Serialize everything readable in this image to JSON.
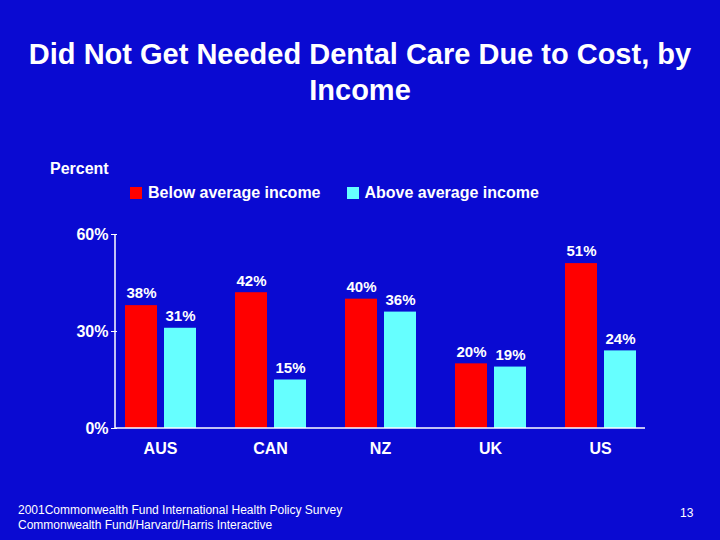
{
  "chart_data": {
    "type": "bar",
    "title": "Did Not Get Needed Dental Care Due to Cost, by Income",
    "y_label": "Percent",
    "categories": [
      "AUS",
      "CAN",
      "NZ",
      "UK",
      "US"
    ],
    "series": [
      {
        "name": "Below average income",
        "color": "#ff0000",
        "values": [
          38,
          42,
          40,
          20,
          51
        ],
        "value_labels": [
          "38%",
          "42%",
          "40%",
          "20%",
          "51%"
        ]
      },
      {
        "name": "Above average income",
        "color": "#66ffff",
        "values": [
          31,
          15,
          36,
          19,
          24
        ],
        "value_labels": [
          "31%",
          "15%",
          "36%",
          "19%",
          "24%"
        ]
      }
    ],
    "ylim": [
      0,
      60
    ],
    "yticks": [
      {
        "value": 0,
        "label": "0%"
      },
      {
        "value": 30,
        "label": "30%"
      },
      {
        "value": 60,
        "label": "60%"
      }
    ],
    "grid": false,
    "legend": "top",
    "data_labels": true,
    "source": [
      "2001Commonwealth Fund International Health Policy Survey",
      "Commonwealth Fund/Harvard/Harris Interactive"
    ],
    "page_number": "13"
  }
}
